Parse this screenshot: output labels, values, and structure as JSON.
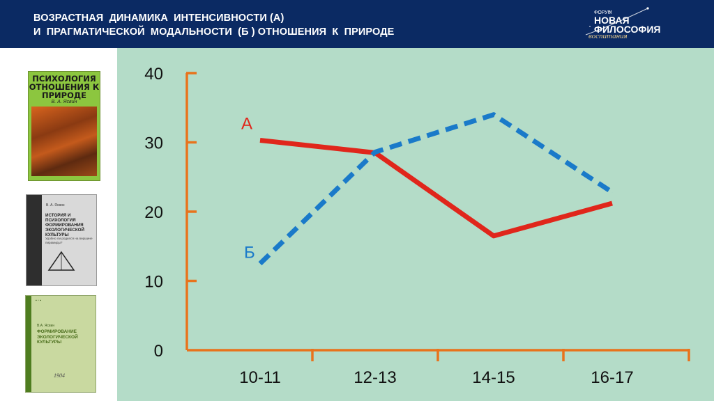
{
  "header": {
    "title_line1": "ВОЗРАСТНАЯ  ДИНАМИКА  ИНТЕНСИВНОСТИ (А)",
    "title_line2": "И  ПРАГМАТИЧЕСКОЙ  МОДАЛЬНОСТИ  (Б ) ОТНОШЕНИЯ  К  ПРИРОДЕ",
    "background_color": "#0b2a63"
  },
  "logo": {
    "forum": "ФОРУМ",
    "line1": "НОВАЯ",
    "line2": "ФИЛОСОФИЯ",
    "line3": "воспитания"
  },
  "books": [
    {
      "title": "ПСИХОЛОГИЯ ОТНОШЕНИЯ К ПРИРОДЕ",
      "author": "В. А. Ясвин"
    },
    {
      "title": "ИСТОРИЯ И ПСИХОЛОГИЯ ФОРМИРОВАНИЯ ЭКОЛОГИЧЕСКОЙ КУЛЬТУРЫ",
      "author": "В. А. Ясвин",
      "subtitle": "Удобно ли родился на вершине пирамиды?"
    },
    {
      "title": "ФОРМИРОВАНИЕ ЭКОЛОГИЧЕСКОЙ КУЛЬТУРЫ",
      "author": "В.А. Ясвин",
      "handwriting": "1904"
    }
  ],
  "chart_data": {
    "type": "line",
    "categories": [
      "10-11",
      "12-13",
      "14-15",
      "16-17"
    ],
    "y_ticks": [
      "0",
      "10",
      "20",
      "30",
      "40"
    ],
    "ylim": [
      0,
      40
    ],
    "series": [
      {
        "name": "А",
        "values": [
          30.3,
          28.5,
          16.5,
          21.2
        ],
        "color": "#e0261b",
        "style": "solid"
      },
      {
        "name": "Б",
        "values": [
          12.5,
          28.6,
          34.0,
          22.8
        ],
        "color": "#1a7ac9",
        "style": "dashed"
      }
    ],
    "axis_color": "#e8731c",
    "background_color": "#b4dcc8"
  }
}
